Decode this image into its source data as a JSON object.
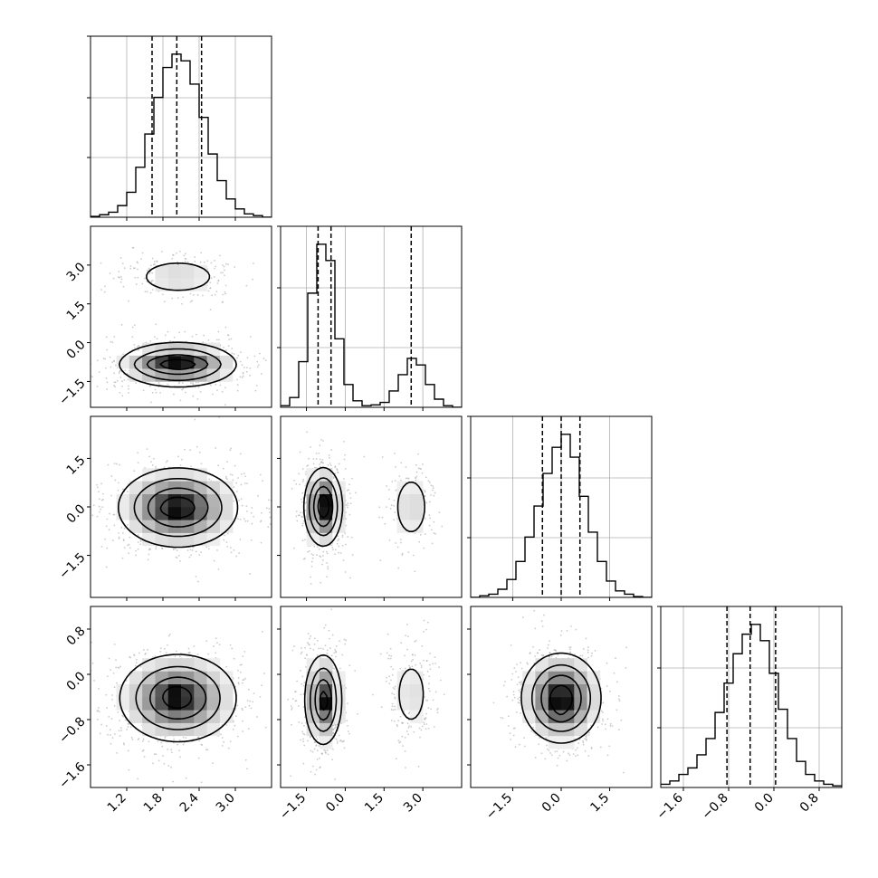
{
  "chart_data": {
    "type": "corner",
    "title": "",
    "parameters": [
      "",
      "",
      "",
      ""
    ],
    "style": {
      "grid": true,
      "legend": "none",
      "colors": {
        "line": "#000000",
        "grid": "#b0b0b0",
        "density_max": "#000000",
        "density_min": "#ffffff",
        "scatter": "#aaaaaa"
      }
    },
    "tick_labels": {
      "0": [
        "1.2",
        "1.8",
        "2.4",
        "3.0"
      ],
      "1": [
        "−1.5",
        "0.0",
        "1.5",
        "3.0"
      ],
      "2": [
        "−1.5",
        "0.0",
        "1.5"
      ],
      "3": [
        "−1.6",
        "−0.8",
        "0.0",
        "0.8"
      ]
    },
    "panels": [
      {
        "row": 0,
        "col": 0,
        "type": "histogram",
        "xlim": [
          0.6,
          3.6
        ],
        "x_ticks": [
          1.2,
          1.8,
          2.4,
          3.0
        ],
        "quantiles": [
          1.62,
          2.03,
          2.44
        ],
        "bins": [
          {
            "x0": 0.6,
            "x1": 0.75,
            "count": 0.5
          },
          {
            "x0": 0.75,
            "x1": 0.9,
            "count": 1.5
          },
          {
            "x0": 0.9,
            "x1": 1.05,
            "count": 3
          },
          {
            "x0": 1.05,
            "x1": 1.2,
            "count": 7
          },
          {
            "x0": 1.2,
            "x1": 1.35,
            "count": 15
          },
          {
            "x0": 1.35,
            "x1": 1.5,
            "count": 30
          },
          {
            "x0": 1.5,
            "x1": 1.65,
            "count": 50
          },
          {
            "x0": 1.65,
            "x1": 1.8,
            "count": 72
          },
          {
            "x0": 1.8,
            "x1": 1.95,
            "count": 90
          },
          {
            "x0": 1.95,
            "x1": 2.1,
            "count": 98
          },
          {
            "x0": 2.1,
            "x1": 2.25,
            "count": 94
          },
          {
            "x0": 2.25,
            "x1": 2.4,
            "count": 80
          },
          {
            "x0": 2.4,
            "x1": 2.55,
            "count": 60
          },
          {
            "x0": 2.55,
            "x1": 2.7,
            "count": 38
          },
          {
            "x0": 2.7,
            "x1": 2.85,
            "count": 22
          },
          {
            "x0": 2.85,
            "x1": 3.0,
            "count": 11
          },
          {
            "x0": 3.0,
            "x1": 3.15,
            "count": 5
          },
          {
            "x0": 3.15,
            "x1": 3.3,
            "count": 2
          },
          {
            "x0": 3.3,
            "x1": 3.45,
            "count": 1
          },
          {
            "x0": 3.45,
            "x1": 3.6,
            "count": 0
          }
        ]
      },
      {
        "row": 1,
        "col": 1,
        "type": "histogram",
        "xlim": [
          -2.5,
          4.5
        ],
        "x_ticks": [
          -1.5,
          0.0,
          1.5,
          3.0
        ],
        "quantiles": [
          -1.05,
          -0.55,
          2.55
        ],
        "bins": [
          {
            "x0": -2.5,
            "x1": -2.15,
            "count": 1
          },
          {
            "x0": -2.15,
            "x1": -1.8,
            "count": 6
          },
          {
            "x0": -1.8,
            "x1": -1.45,
            "count": 28
          },
          {
            "x0": -1.45,
            "x1": -1.1,
            "count": 70
          },
          {
            "x0": -1.1,
            "x1": -0.75,
            "count": 100
          },
          {
            "x0": -0.75,
            "x1": -0.4,
            "count": 90
          },
          {
            "x0": -0.4,
            "x1": -0.05,
            "count": 42
          },
          {
            "x0": -0.05,
            "x1": 0.3,
            "count": 14
          },
          {
            "x0": 0.3,
            "x1": 0.65,
            "count": 4
          },
          {
            "x0": 0.65,
            "x1": 1.0,
            "count": 1
          },
          {
            "x0": 1.0,
            "x1": 1.35,
            "count": 1.5
          },
          {
            "x0": 1.35,
            "x1": 1.7,
            "count": 3
          },
          {
            "x0": 1.7,
            "x1": 2.05,
            "count": 10
          },
          {
            "x0": 2.05,
            "x1": 2.4,
            "count": 20
          },
          {
            "x0": 2.4,
            "x1": 2.75,
            "count": 30
          },
          {
            "x0": 2.75,
            "x1": 3.1,
            "count": 26
          },
          {
            "x0": 3.1,
            "x1": 3.45,
            "count": 14
          },
          {
            "x0": 3.45,
            "x1": 3.8,
            "count": 5
          },
          {
            "x0": 3.8,
            "x1": 4.15,
            "count": 1
          },
          {
            "x0": 4.15,
            "x1": 4.5,
            "count": 0
          }
        ]
      },
      {
        "row": 2,
        "col": 2,
        "type": "histogram",
        "xlim": [
          -2.8,
          2.8
        ],
        "x_ticks": [
          -1.5,
          0.0,
          1.5
        ],
        "quantiles": [
          -0.58,
          0.0,
          0.58
        ],
        "bins": [
          {
            "x0": -2.8,
            "x1": -2.52,
            "count": 0
          },
          {
            "x0": -2.52,
            "x1": -2.24,
            "count": 1
          },
          {
            "x0": -2.24,
            "x1": -1.96,
            "count": 2
          },
          {
            "x0": -1.96,
            "x1": -1.68,
            "count": 5
          },
          {
            "x0": -1.68,
            "x1": -1.4,
            "count": 11
          },
          {
            "x0": -1.4,
            "x1": -1.12,
            "count": 22
          },
          {
            "x0": -1.12,
            "x1": -0.84,
            "count": 37
          },
          {
            "x0": -0.84,
            "x1": -0.56,
            "count": 56
          },
          {
            "x0": -0.56,
            "x1": -0.28,
            "count": 76
          },
          {
            "x0": -0.28,
            "x1": 0.0,
            "count": 92
          },
          {
            "x0": 0.0,
            "x1": 0.28,
            "count": 100
          },
          {
            "x0": 0.28,
            "x1": 0.56,
            "count": 86
          },
          {
            "x0": 0.56,
            "x1": 0.84,
            "count": 62
          },
          {
            "x0": 0.84,
            "x1": 1.12,
            "count": 40
          },
          {
            "x0": 1.12,
            "x1": 1.4,
            "count": 22
          },
          {
            "x0": 1.4,
            "x1": 1.68,
            "count": 10
          },
          {
            "x0": 1.68,
            "x1": 1.96,
            "count": 4
          },
          {
            "x0": 1.96,
            "x1": 2.24,
            "count": 2
          },
          {
            "x0": 2.24,
            "x1": 2.52,
            "count": 0.5
          },
          {
            "x0": 2.52,
            "x1": 2.8,
            "count": 0
          }
        ]
      },
      {
        "row": 3,
        "col": 3,
        "type": "histogram",
        "xlim": [
          -2.0,
          1.2
        ],
        "x_ticks": [
          -1.6,
          -0.8,
          0.0,
          0.8
        ],
        "quantiles": [
          -0.83,
          -0.42,
          0.03
        ],
        "bins": [
          {
            "x0": -2.0,
            "x1": -1.84,
            "count": 2
          },
          {
            "x0": -1.84,
            "x1": -1.68,
            "count": 4
          },
          {
            "x0": -1.68,
            "x1": -1.52,
            "count": 8
          },
          {
            "x0": -1.52,
            "x1": -1.36,
            "count": 12
          },
          {
            "x0": -1.36,
            "x1": -1.2,
            "count": 20
          },
          {
            "x0": -1.2,
            "x1": -1.04,
            "count": 30
          },
          {
            "x0": -1.04,
            "x1": -0.88,
            "count": 46
          },
          {
            "x0": -0.88,
            "x1": -0.72,
            "count": 64
          },
          {
            "x0": -0.72,
            "x1": -0.56,
            "count": 82
          },
          {
            "x0": -0.56,
            "x1": -0.4,
            "count": 94
          },
          {
            "x0": -0.4,
            "x1": -0.24,
            "count": 100
          },
          {
            "x0": -0.24,
            "x1": -0.08,
            "count": 90
          },
          {
            "x0": -0.08,
            "x1": 0.08,
            "count": 70
          },
          {
            "x0": 0.08,
            "x1": 0.24,
            "count": 48
          },
          {
            "x0": 0.24,
            "x1": 0.4,
            "count": 30
          },
          {
            "x0": 0.4,
            "x1": 0.56,
            "count": 16
          },
          {
            "x0": 0.56,
            "x1": 0.72,
            "count": 8
          },
          {
            "x0": 0.72,
            "x1": 0.88,
            "count": 4
          },
          {
            "x0": 0.88,
            "x1": 1.04,
            "count": 2
          },
          {
            "x0": 1.04,
            "x1": 1.2,
            "count": 1
          }
        ]
      },
      {
        "row": 1,
        "col": 0,
        "type": "density2d",
        "xlim": [
          0.6,
          3.6
        ],
        "ylim": [
          -2.5,
          4.5
        ],
        "components": [
          {
            "mx": 2.05,
            "my": -0.85,
            "sx": 0.5,
            "sy": 0.45,
            "w": 0.76
          },
          {
            "mx": 2.05,
            "my": 2.55,
            "sx": 0.45,
            "sy": 0.45,
            "w": 0.24
          }
        ],
        "core": [
          {
            "cx": 2.02,
            "cy": -0.83,
            "rx": 0.34,
            "ry": 0.16,
            "w": 0.3
          },
          {
            "cx": 2.1,
            "cy": -0.88,
            "rx": 0.11,
            "ry": 0.06,
            "w": 0.25
          }
        ]
      },
      {
        "row": 2,
        "col": 0,
        "type": "density2d",
        "xlim": [
          0.6,
          3.6
        ],
        "ylim": [
          -2.8,
          2.8
        ],
        "components": [
          {
            "mx": 2.05,
            "my": -0.02,
            "sx": 0.5,
            "sy": 0.62,
            "w": 1.0
          }
        ],
        "core": [
          {
            "cx": 2.05,
            "cy": -0.02,
            "rx": 0.26,
            "ry": 0.28,
            "w": 0.25
          },
          {
            "cx": 2.0,
            "cy": -0.08,
            "rx": 0.12,
            "ry": 0.06,
            "w": 0.25
          }
        ]
      },
      {
        "row": 2,
        "col": 1,
        "type": "density2d",
        "xlim": [
          -2.5,
          4.5
        ],
        "ylim": [
          -2.8,
          2.8
        ],
        "components": [
          {
            "mx": -0.85,
            "my": 0.0,
            "sx": 0.38,
            "sy": 0.62,
            "w": 0.76
          },
          {
            "mx": 2.55,
            "my": 0.0,
            "sx": 0.42,
            "sy": 0.62,
            "w": 0.24
          }
        ],
        "core": [
          {
            "cx": -0.85,
            "cy": 0.05,
            "rx": 0.18,
            "ry": 0.34,
            "w": 0.25
          },
          {
            "cx": -0.8,
            "cy": 0.0,
            "rx": 0.08,
            "ry": 0.12,
            "w": 0.2
          }
        ]
      },
      {
        "row": 3,
        "col": 0,
        "type": "density2d",
        "xlim": [
          0.6,
          3.6
        ],
        "ylim": [
          -2.0,
          1.2
        ],
        "components": [
          {
            "mx": 2.05,
            "my": -0.42,
            "sx": 0.5,
            "sy": 0.4,
            "w": 1.0
          }
        ],
        "core": [
          {
            "cx": 2.05,
            "cy": -0.42,
            "rx": 0.28,
            "ry": 0.22,
            "w": 0.25
          },
          {
            "cx": 2.0,
            "cy": -0.38,
            "rx": 0.12,
            "ry": 0.1,
            "w": 0.25
          }
        ]
      },
      {
        "row": 3,
        "col": 1,
        "type": "density2d",
        "xlim": [
          -2.5,
          4.5
        ],
        "ylim": [
          -2.0,
          1.2
        ],
        "components": [
          {
            "mx": -0.85,
            "my": -0.45,
            "sx": 0.38,
            "sy": 0.42,
            "w": 0.76
          },
          {
            "mx": 2.55,
            "my": -0.35,
            "sx": 0.42,
            "sy": 0.4,
            "w": 0.24
          }
        ],
        "core": [
          {
            "cx": -0.85,
            "cy": -0.45,
            "rx": 0.18,
            "ry": 0.22,
            "w": 0.25
          },
          {
            "cx": -0.8,
            "cy": -0.5,
            "rx": 0.07,
            "ry": 0.08,
            "w": 0.2
          }
        ]
      },
      {
        "row": 3,
        "col": 2,
        "type": "density2d",
        "xlim": [
          -2.8,
          2.8
        ],
        "ylim": [
          -2.0,
          1.2
        ],
        "components": [
          {
            "mx": 0.0,
            "my": -0.42,
            "sx": 0.62,
            "sy": 0.4,
            "w": 1.0
          }
        ],
        "core": [
          {
            "cx": 0.0,
            "cy": -0.45,
            "rx": 0.3,
            "ry": 0.22,
            "w": 0.25
          },
          {
            "cx": -0.02,
            "cy": -0.55,
            "rx": 0.1,
            "ry": 0.12,
            "w": 0.25
          }
        ]
      }
    ]
  }
}
